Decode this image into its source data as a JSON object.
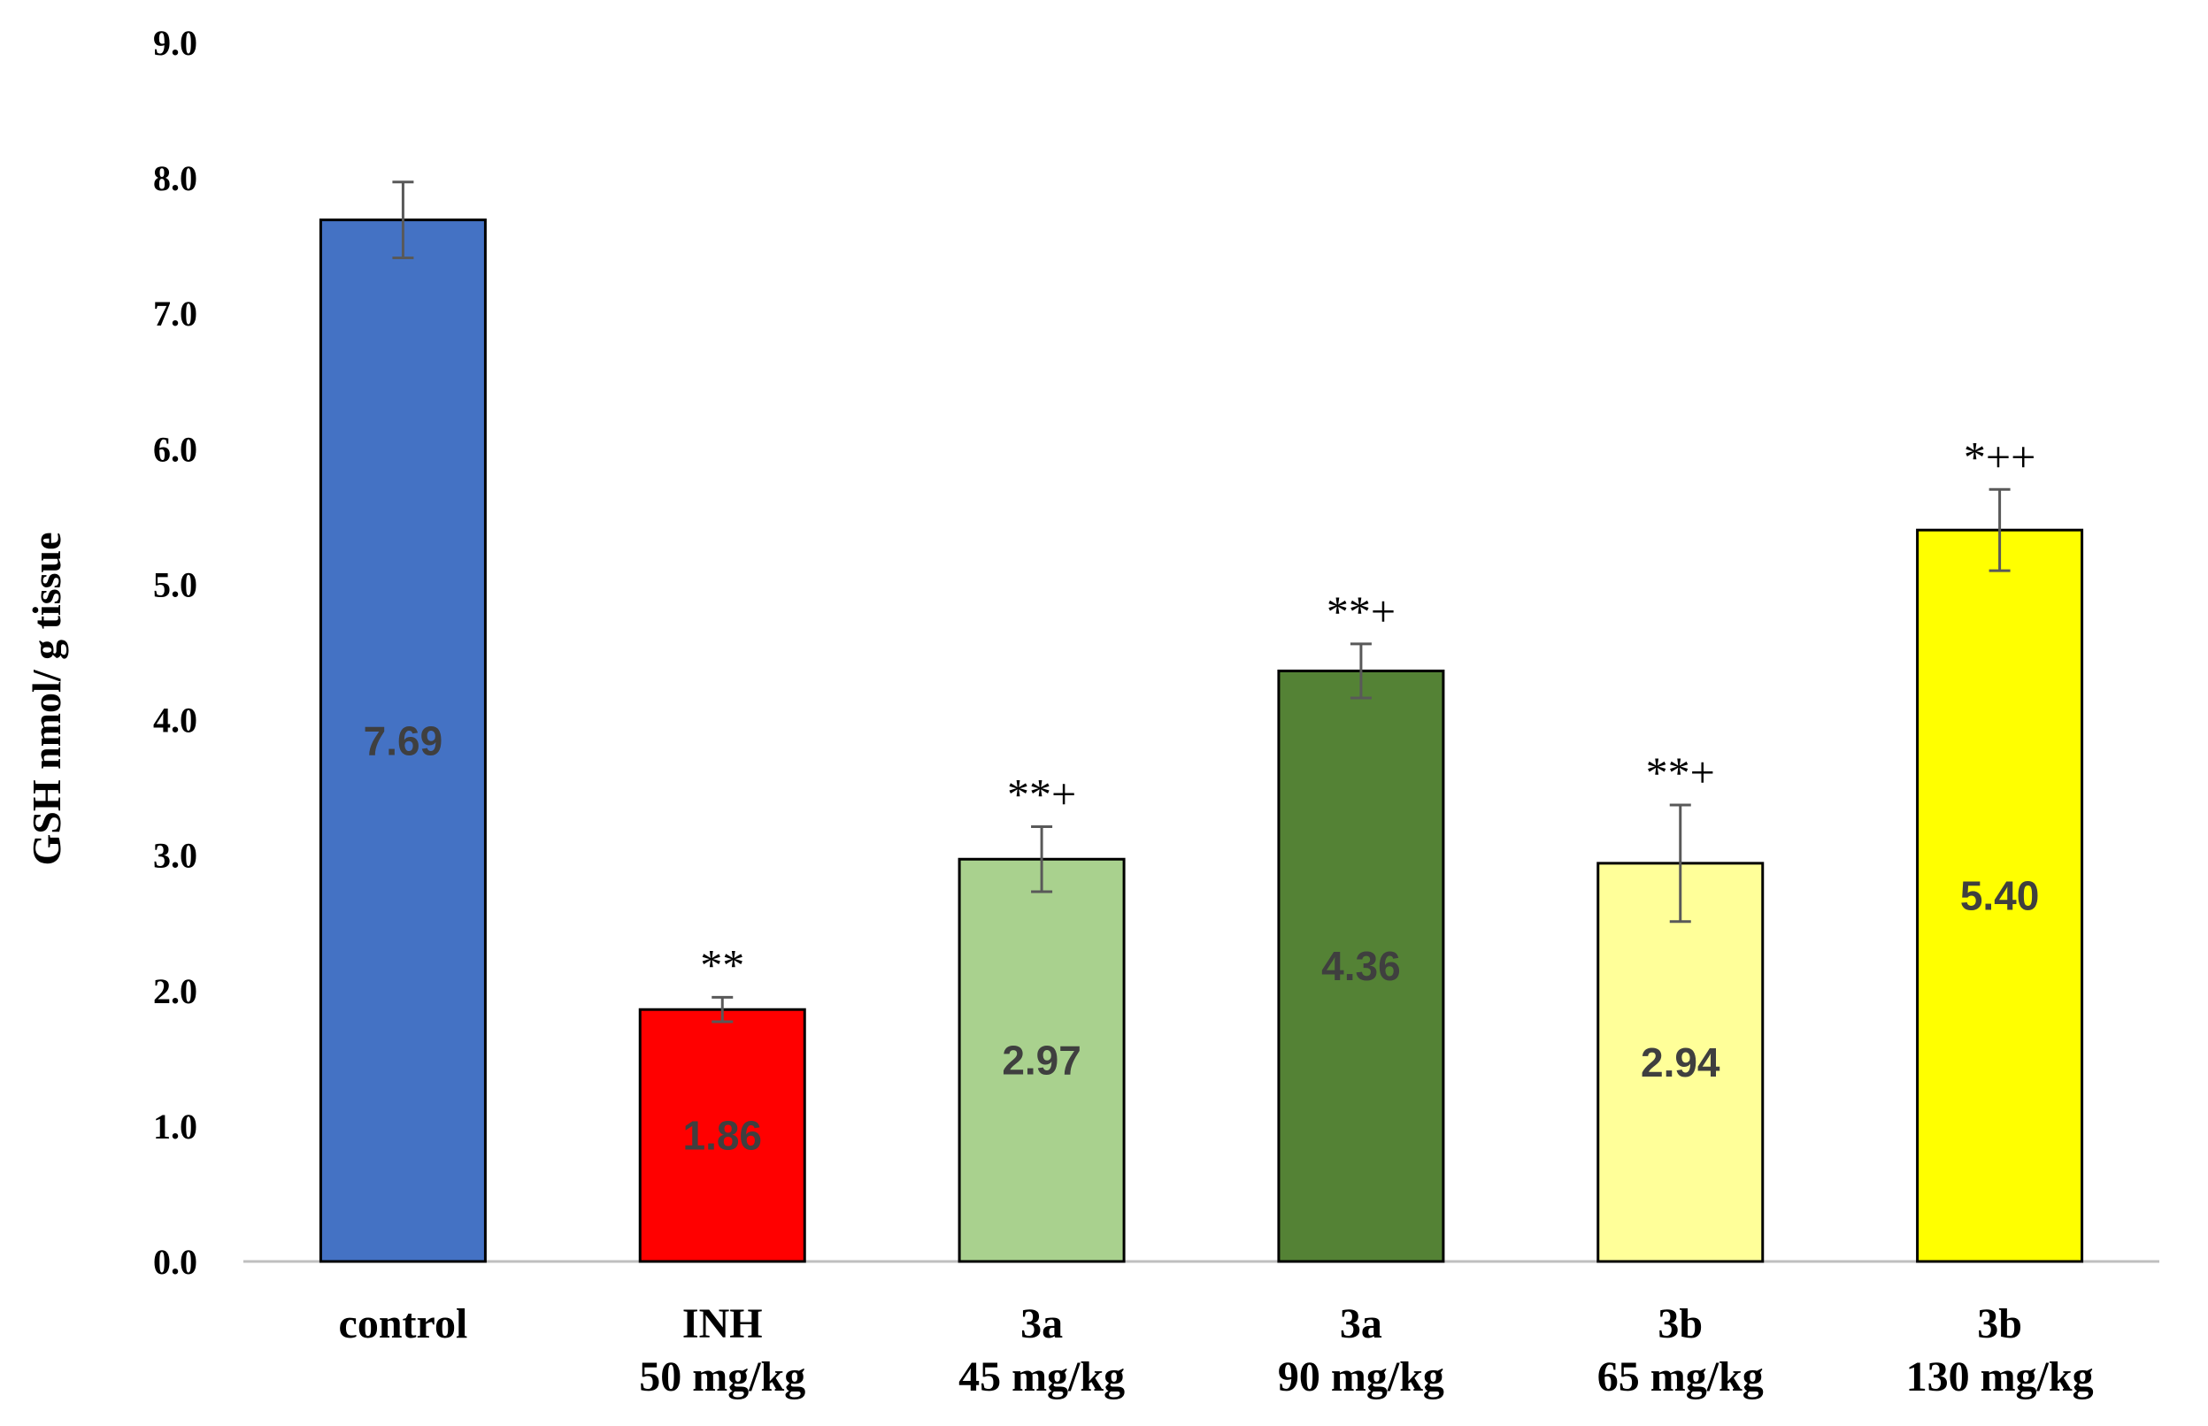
{
  "chart_data": {
    "type": "bar",
    "title": "",
    "xlabel": "",
    "ylabel": "GSH nmol/ g  tissue",
    "ylim": [
      0,
      9
    ],
    "yticks": [
      "0.0",
      "1.0",
      "2.0",
      "3.0",
      "4.0",
      "5.0",
      "6.0",
      "7.0",
      "8.0",
      "9.0"
    ],
    "grid": false,
    "legend": "none",
    "categories": [
      {
        "line1": "control",
        "line2": ""
      },
      {
        "line1": "INH",
        "line2": "50 mg/kg"
      },
      {
        "line1": "3a",
        "line2": "45 mg/kg"
      },
      {
        "line1": "3a",
        "line2": "90 mg/kg"
      },
      {
        "line1": "3b",
        "line2": "65 mg/kg"
      },
      {
        "line1": "3b",
        "line2": "130 mg/kg"
      }
    ],
    "values": [
      7.69,
      1.86,
      2.97,
      4.36,
      2.94,
      5.4
    ],
    "value_labels": [
      "7.69",
      "1.86",
      "2.97",
      "4.36",
      "2.94",
      "5.40"
    ],
    "errors": [
      0.28,
      0.09,
      0.24,
      0.2,
      0.43,
      0.3
    ],
    "significance": [
      "",
      "**",
      "**+",
      "**+",
      "**+",
      "*++"
    ],
    "colors": [
      "#4472C4",
      "#FF0000",
      "#A9D18E",
      "#548235",
      "#FFFF99",
      "#FFFF00"
    ]
  }
}
